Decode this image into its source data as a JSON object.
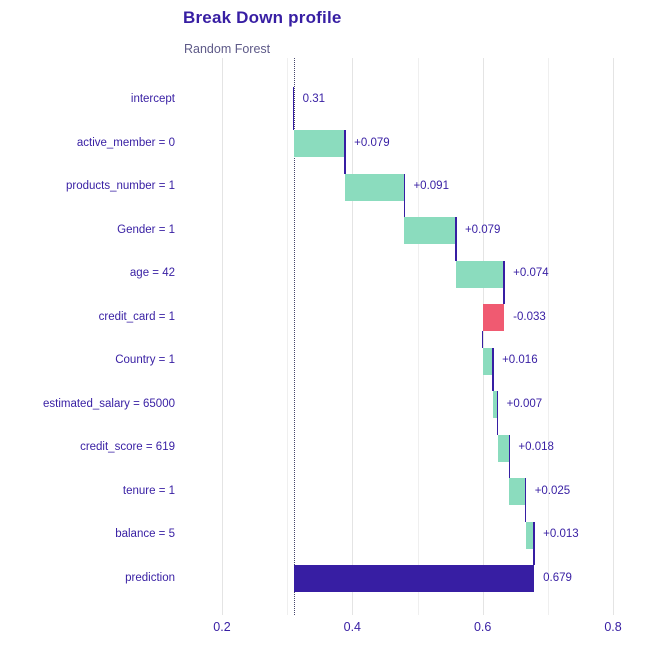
{
  "title": "Break Down profile",
  "subtitle": "Random Forest",
  "colors": {
    "positive_bar": "#8bdcbe",
    "negative_bar": "#f05a71",
    "neutral_bar": "#371ea3",
    "title_text": "#371ea3",
    "subtitle_text": "#5e5a88",
    "axis_text": "#371ea3",
    "grid_major": "#e4e4e4",
    "grid_minor": "#efefef",
    "intercept_dotted_line": "#45456b",
    "connector_line": "#371ea3"
  },
  "chart_data": {
    "type": "bar",
    "subtype": "waterfall-breakdown",
    "title": "Break Down profile",
    "subtitle": "Random Forest",
    "orientation": "horizontal",
    "grid": "vertical-only",
    "categories": [
      "intercept",
      "active_member = 0",
      "products_number = 1",
      "Gender = 1",
      "age = 42",
      "credit_card = 1",
      "Country = 1",
      "estimated_salary = 65000",
      "credit_score = 619",
      "tenure = 1",
      "balance = 5",
      "prediction"
    ],
    "contributions": [
      0.31,
      0.079,
      0.091,
      0.079,
      0.074,
      -0.033,
      0.016,
      0.007,
      0.018,
      0.025,
      0.013,
      0.679
    ],
    "cumulative": [
      0.31,
      0.389,
      0.48,
      0.559,
      0.633,
      0.6,
      0.616,
      0.623,
      0.641,
      0.666,
      0.679,
      0.679
    ],
    "bar_labels": [
      "0.31",
      "+0.079",
      "+0.091",
      "+0.079",
      "+0.074",
      "-0.033",
      "+0.016",
      "+0.007",
      "+0.018",
      "+0.025",
      "+0.013",
      "0.679"
    ],
    "bar_kinds": [
      "intercept",
      "positive",
      "positive",
      "positive",
      "positive",
      "negative",
      "positive",
      "positive",
      "positive",
      "positive",
      "positive",
      "prediction"
    ],
    "intercept": 0.31,
    "prediction": 0.679,
    "x_ticks": [
      0.2,
      0.4,
      0.6,
      0.8
    ],
    "x_tick_labels": [
      "0.2",
      "0.4",
      "0.6",
      "0.8"
    ],
    "x_minor_ticks": [
      0.3,
      0.5,
      0.7
    ],
    "xlim": [
      0.143,
      0.866
    ]
  }
}
